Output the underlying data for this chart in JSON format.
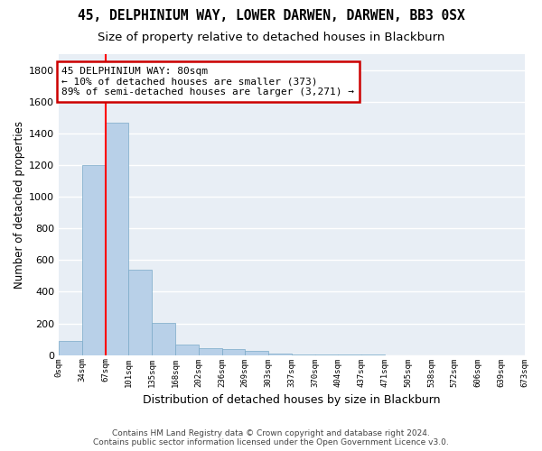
{
  "title1": "45, DELPHINIUM WAY, LOWER DARWEN, DARWEN, BB3 0SX",
  "title2": "Size of property relative to detached houses in Blackburn",
  "xlabel": "Distribution of detached houses by size in Blackburn",
  "ylabel": "Number of detached properties",
  "footer1": "Contains HM Land Registry data © Crown copyright and database right 2024.",
  "footer2": "Contains public sector information licensed under the Open Government Licence v3.0.",
  "bin_edges": [
    "0sqm",
    "34sqm",
    "67sqm",
    "101sqm",
    "135sqm",
    "168sqm",
    "202sqm",
    "236sqm",
    "269sqm",
    "303sqm",
    "337sqm",
    "370sqm",
    "404sqm",
    "437sqm",
    "471sqm",
    "505sqm",
    "538sqm",
    "572sqm",
    "606sqm",
    "639sqm",
    "673sqm"
  ],
  "bar_values": [
    90,
    1200,
    1470,
    540,
    205,
    65,
    45,
    35,
    28,
    10,
    5,
    2,
    1,
    1,
    0,
    0,
    0,
    0,
    0,
    0
  ],
  "bar_color": "#b8d0e8",
  "bar_edge_color": "#7aaac8",
  "ylim": [
    0,
    1900
  ],
  "yticks": [
    0,
    200,
    400,
    600,
    800,
    1000,
    1200,
    1400,
    1600,
    1800
  ],
  "red_line_x": 2.0,
  "annotation_text": "45 DELPHINIUM WAY: 80sqm\n← 10% of detached houses are smaller (373)\n89% of semi-detached houses are larger (3,271) →",
  "annotation_box_color": "#cc0000",
  "background_color": "#e8eef5",
  "grid_color": "#ffffff",
  "title1_fontsize": 10.5,
  "title2_fontsize": 9.5,
  "ylabel_fontsize": 8.5,
  "xlabel_fontsize": 9,
  "annotation_fontsize": 8,
  "footer_fontsize": 6.5
}
